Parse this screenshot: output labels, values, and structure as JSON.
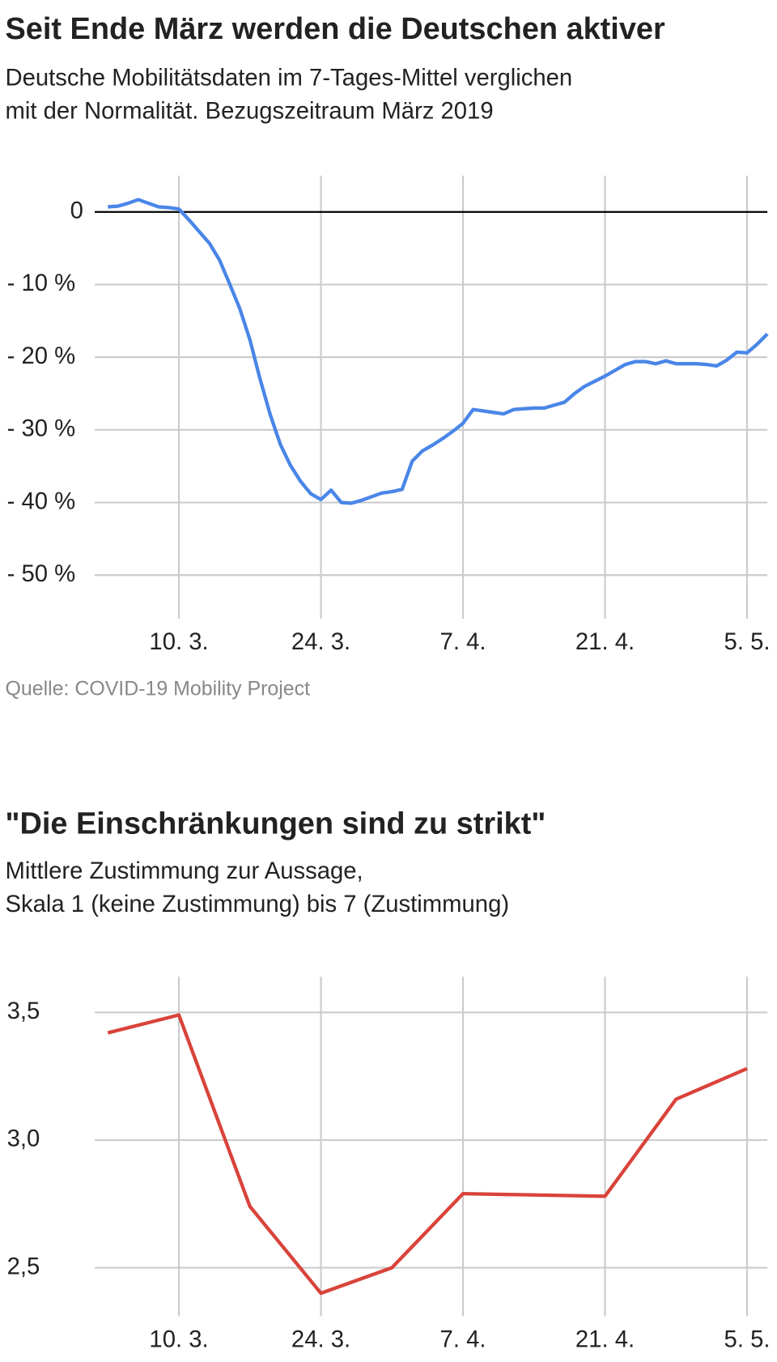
{
  "chart_data": [
    {
      "type": "line",
      "title": "Seit Ende März werden die Deutschen aktiver",
      "subtitle": [
        "Deutsche Mobilitätsdaten im 7-Tages-Mittel verglichen",
        "mit der Normalität. Bezugszeitraum März 2019"
      ],
      "source": "Quelle: COVID-19 Mobility Project",
      "x": [
        "3. 3.",
        "4. 3.",
        "5. 3.",
        "6. 3.",
        "7. 3.",
        "8. 3.",
        "9. 3.",
        "10. 3.",
        "11. 3.",
        "12. 3.",
        "13. 3.",
        "14. 3.",
        "15. 3.",
        "16. 3.",
        "17. 3.",
        "18. 3.",
        "19. 3.",
        "20. 3.",
        "21. 3.",
        "22. 3.",
        "23. 3.",
        "24. 3.",
        "25. 3.",
        "26. 3.",
        "27. 3.",
        "28. 3.",
        "29. 3.",
        "30. 3.",
        "31. 3.",
        "1. 4.",
        "2. 4.",
        "3. 4.",
        "4. 4.",
        "5. 4.",
        "6. 4.",
        "7. 4.",
        "8. 4.",
        "9. 4.",
        "10. 4.",
        "11. 4.",
        "12. 4.",
        "13. 4.",
        "14. 4.",
        "15. 4.",
        "16. 4.",
        "17. 4.",
        "18. 4.",
        "19. 4.",
        "20. 4.",
        "21. 4.",
        "22. 4.",
        "23. 4.",
        "24. 4.",
        "25. 4.",
        "26. 4.",
        "27. 4.",
        "28. 4.",
        "29. 4.",
        "30. 4.",
        "1. 5.",
        "2. 5.",
        "3. 5.",
        "4. 5.",
        "5. 5.",
        "6. 5.",
        "7. 5."
      ],
      "series": [
        {
          "color": "#4a86e8",
          "values": [
            0.7,
            0.8,
            1.2,
            1.7,
            1.2,
            0.7,
            0.6,
            0.4,
            -1.1,
            -2.7,
            -4.3,
            -6.6,
            -9.9,
            -13.3,
            -17.6,
            -23,
            -27.9,
            -32,
            -34.9,
            -37.1,
            -38.8,
            -39.6,
            -38.3,
            -40,
            -40.1,
            -39.7,
            -39.2,
            -38.7,
            -38.5,
            -38.2,
            -34.3,
            -32.9,
            -32.1,
            -31.2,
            -30.2,
            -29.1,
            -27.2,
            -27.4,
            -27.6,
            -27.8,
            -27.2,
            -27.1,
            -27,
            -27,
            -26.6,
            -26.2,
            -25,
            -24,
            -23.3,
            -22.6,
            -21.8,
            -21,
            -20.6,
            -20.6,
            -20.9,
            -20.5,
            -20.9,
            -20.9,
            -20.9,
            -21,
            -21.2,
            -20.4,
            -19.3,
            -19.4,
            -18.2,
            -16.8
          ]
        }
      ],
      "xlim": [
        "3. 3.",
        "7. 5."
      ],
      "xticks": [
        "10. 3.",
        "24. 3.",
        "7. 4.",
        "21. 4.",
        "5. 5."
      ],
      "ylim": [
        -56,
        5
      ],
      "yticks": [
        0,
        {
          "value": -10,
          "label": "- 10 %"
        },
        {
          "value": -20,
          "label": "- 20 %"
        },
        {
          "value": -30,
          "label": "- 30 %"
        },
        {
          "value": -40,
          "label": "- 40 %"
        },
        {
          "value": -50,
          "label": "- 50 %"
        }
      ],
      "grid": true
    },
    {
      "type": "line",
      "title": "\"Die Einschränkungen sind zu strikt\"",
      "subtitle": [
        "Mittlere Zustimmung zur Aussage,",
        "Skala 1 (keine Zustimmung) bis 7 (Zustimmung)"
      ],
      "x": [
        "3. 3.",
        "10. 3.",
        "17. 3.",
        "24. 3.",
        "31. 3.",
        "7. 4.",
        "21. 4.",
        "28. 4.",
        "5. 5."
      ],
      "series": [
        {
          "color": "#d9433a",
          "values": [
            3.42,
            3.49,
            2.74,
            2.4,
            2.5,
            2.79,
            2.78,
            3.16,
            3.28
          ]
        }
      ],
      "xlim": [
        "3. 3.",
        "7. 5."
      ],
      "xticks": [
        "10. 3.",
        "24. 3.",
        "7. 4.",
        "21. 4.",
        "5. 5."
      ],
      "ylim": [
        2.31,
        3.64
      ],
      "yticks": [
        {
          "value": 3.5,
          "label": "3,5"
        },
        {
          "value": 3.0,
          "label": "3,0"
        },
        {
          "value": 2.5,
          "label": "2,5"
        }
      ],
      "grid": true
    }
  ]
}
